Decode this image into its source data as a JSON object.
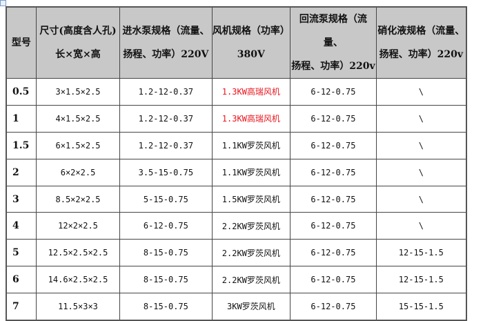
{
  "headers": [
    {
      "line1": "型号",
      "line2": ""
    },
    {
      "line1": "尺寸(高度含人孔)",
      "line2": "长×宽×高"
    },
    {
      "line1": "进水泵规格（流量、",
      "line2": "扬程、功率）220V"
    },
    {
      "line1": "风机规格（功率）",
      "line2": "380V"
    },
    {
      "line1": "回流泵规格（流量、",
      "line2": "扬程、功率）220v"
    },
    {
      "line1": "硝化液规格（流量、",
      "line2": "扬程、功率）220v"
    }
  ],
  "highlight_color": "#e8141c",
  "rows": [
    {
      "model": "0.5",
      "size": "3×1.5×2.5",
      "inlet": "1.2-12-0.37",
      "fan": "1.3KW高瑞风机",
      "fan_red": true,
      "reflux": "6-12-0.75",
      "nitr": "\\"
    },
    {
      "model": "1",
      "size": "4×1.5×2.5",
      "inlet": "1.2-12-0.37",
      "fan": "1.3KW高瑞风机",
      "fan_red": true,
      "reflux": "6-12-0.75",
      "nitr": "\\"
    },
    {
      "model": "1.5",
      "size": "6×1.5×2.5",
      "inlet": "1.2-12-0.37",
      "fan": "1.1KW罗茨风机",
      "fan_red": false,
      "reflux": "6-12-0.75",
      "nitr": "\\"
    },
    {
      "model": "2",
      "size": "6×2×2.5",
      "inlet": "3.5-15-0.75",
      "fan": "1.1KW罗茨风机",
      "fan_red": false,
      "reflux": "6-12-0.75",
      "nitr": "\\"
    },
    {
      "model": "3",
      "size": "8.5×2×2.5",
      "inlet": "5-15-0.75",
      "fan": "1.5KW罗茨风机",
      "fan_red": false,
      "reflux": "6-12-0.75",
      "nitr": "\\"
    },
    {
      "model": "4",
      "size": "12×2×2.5",
      "inlet": "6-12-0.75",
      "fan": "2.2KW罗茨风机",
      "fan_red": false,
      "reflux": "6-12-0.75",
      "nitr": "\\"
    },
    {
      "model": "5",
      "size": "12.5×2.5×2.5",
      "inlet": "8-15-0.75",
      "fan": "2.2KW罗茨风机",
      "fan_red": false,
      "reflux": "6-12-0.75",
      "nitr": "12-15-1.5"
    },
    {
      "model": "6",
      "size": "14.6×2.5×2.5",
      "inlet": "8-15-0.75",
      "fan": "2.2KW罗茨风机",
      "fan_red": false,
      "reflux": "6-12-0.75",
      "nitr": "12-15-1.5"
    },
    {
      "model": "7",
      "size": "11.5×3×3",
      "inlet": "8-15-0.75",
      "fan": "3KW罗茨风机",
      "fan_red": false,
      "reflux": "6-12-0.75",
      "nitr": "15-15-1.5"
    }
  ]
}
